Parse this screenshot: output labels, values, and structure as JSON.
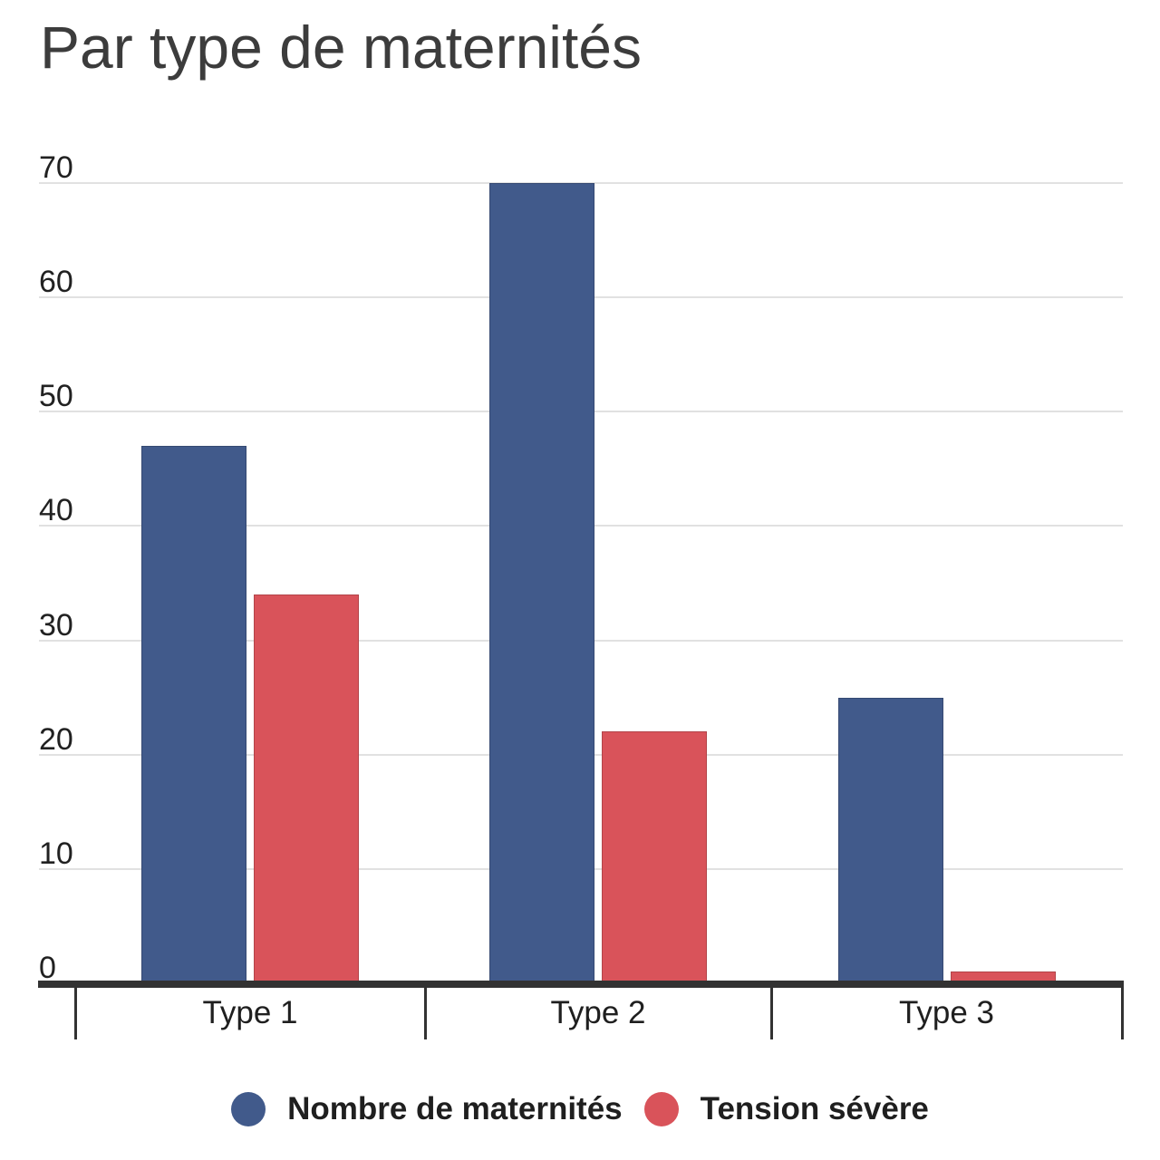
{
  "title": "Par type de maternités",
  "chart_data": {
    "type": "bar",
    "title": "Par type de maternités",
    "categories": [
      "Type 1",
      "Type 2",
      "Type 3"
    ],
    "series": [
      {
        "name": "Nombre de maternités",
        "color": "#415a8b",
        "values": [
          47,
          70,
          25
        ]
      },
      {
        "name": "Tension sévère",
        "color": "#d9535a",
        "values": [
          34,
          22,
          1
        ]
      }
    ],
    "xlabel": "",
    "ylabel": "",
    "ylim": [
      0,
      70
    ],
    "yticks": [
      0,
      10,
      20,
      30,
      40,
      50,
      60,
      70
    ],
    "grid": true,
    "legend_position": "bottom",
    "axis_color": "#323232",
    "gridline_color": "#e1e1e1",
    "title_color": "#3c3c3c",
    "label_color": "#212121"
  }
}
